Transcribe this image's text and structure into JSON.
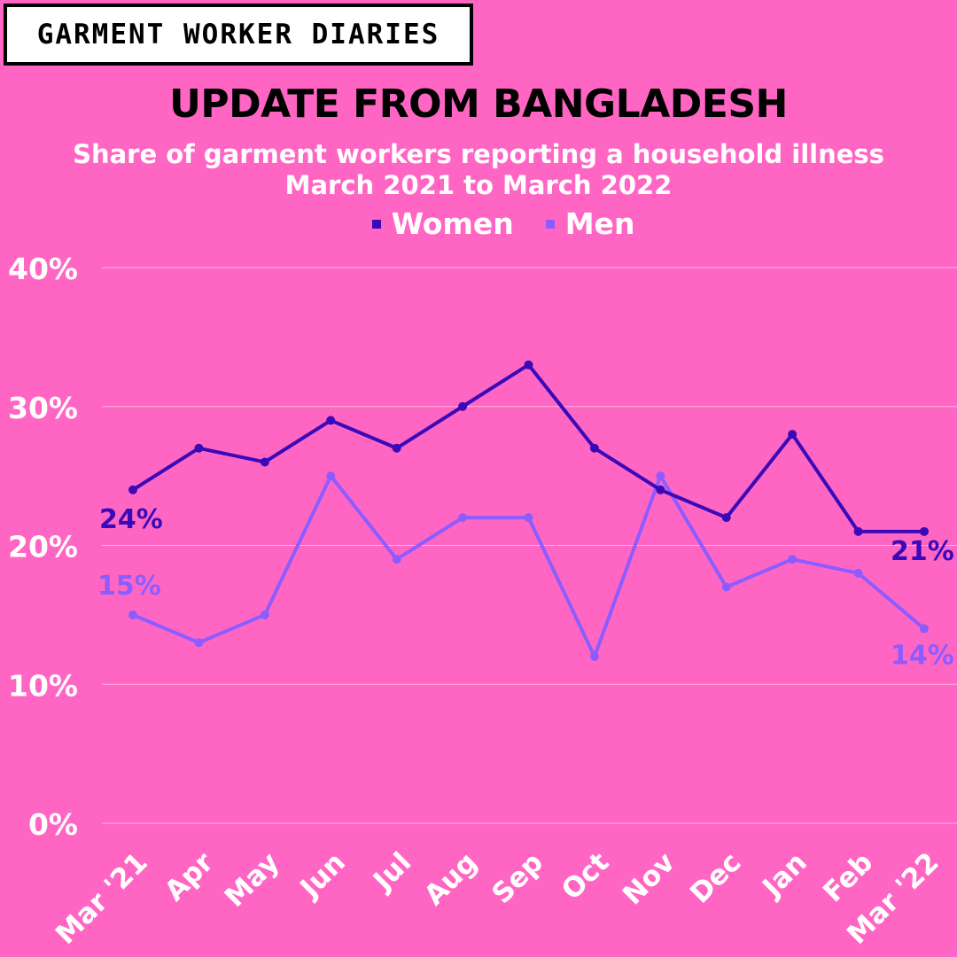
{
  "brand": {
    "label": "GARMENT WORKER DIARIES"
  },
  "colors": {
    "background": "#ff66c4",
    "women": "#3a0ab8",
    "men": "#8c5cff",
    "text": "#ffffff"
  },
  "chart_data": {
    "type": "line",
    "title": "UPDATE FROM BANGLADESH",
    "subtitle": [
      "Share of garment workers reporting a household illness",
      "March 2021 to March 2022"
    ],
    "categories": [
      "Mar '21",
      "Apr",
      "May",
      "Jun",
      "Jul",
      "Aug",
      "Sep",
      "Oct",
      "Nov",
      "Dec",
      "Jan",
      "Feb",
      "Mar '22"
    ],
    "series": [
      {
        "name": "Women",
        "color": "#3a0ab8",
        "values": [
          24,
          27,
          26,
          29,
          27,
          30,
          33,
          27,
          24,
          22,
          28,
          21,
          21
        ]
      },
      {
        "name": "Men",
        "color": "#8c5cff",
        "values": [
          15,
          13,
          15,
          25,
          19,
          22,
          22,
          12,
          25,
          17,
          19,
          18,
          14
        ]
      }
    ],
    "ylim": [
      0,
      40
    ],
    "y_ticks": [
      0,
      10,
      20,
      30,
      40
    ],
    "y_tick_labels": [
      "0%",
      "10%",
      "20%",
      "30%",
      "40%"
    ],
    "grid": true,
    "legend_position": "top-center",
    "data_labels": [
      {
        "series": "Women",
        "index": 0,
        "text": "24%"
      },
      {
        "series": "Women",
        "index": 12,
        "text": "21%"
      },
      {
        "series": "Men",
        "index": 0,
        "text": "15%"
      },
      {
        "series": "Men",
        "index": 12,
        "text": "14%"
      }
    ]
  }
}
